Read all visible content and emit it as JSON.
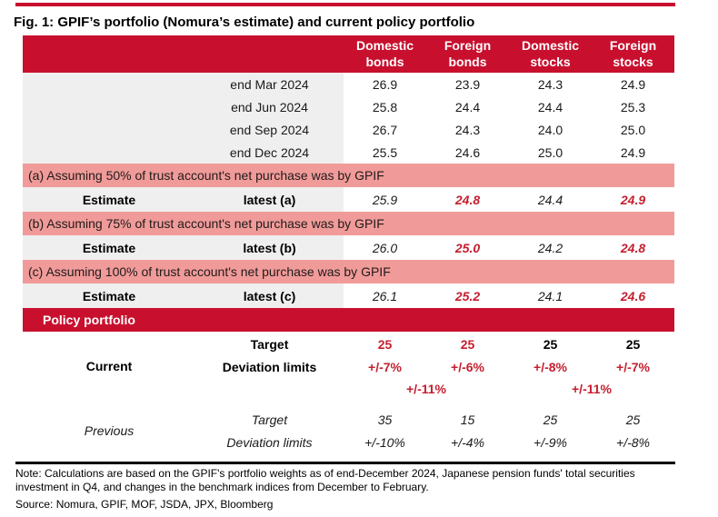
{
  "title": "Fig. 1: GPIF’s portfolio (Nomura’s estimate) and current policy portfolio",
  "colors": {
    "accent_red": "#c8102e",
    "band_pink": "#f09b99",
    "row_gray": "#efefef",
    "value_red": "#c41f30"
  },
  "header": {
    "cols": [
      "Domestic bonds",
      "Foreign bonds",
      "Domestic stocks",
      "Foreign stocks"
    ]
  },
  "history": [
    {
      "label": "end Mar 2024",
      "v": [
        "26.9",
        "23.9",
        "24.3",
        "24.9"
      ]
    },
    {
      "label": "end Jun 2024",
      "v": [
        "25.8",
        "24.4",
        "24.4",
        "25.3"
      ]
    },
    {
      "label": "end Sep 2024",
      "v": [
        "26.7",
        "24.3",
        "24.0",
        "25.0"
      ]
    },
    {
      "label": "end Dec 2024",
      "v": [
        "25.5",
        "24.6",
        "25.0",
        "24.9"
      ]
    }
  ],
  "scenarios": [
    {
      "band": "(a) Assuming 50% of trust account's net purchase was by GPIF",
      "label": "Estimate",
      "sub": "latest (a)",
      "v": [
        "25.9",
        "24.8",
        "24.4",
        "24.9"
      ]
    },
    {
      "band": "(b) Assuming 75% of trust account's net purchase was by GPIF",
      "label": "Estimate",
      "sub": "latest (b)",
      "v": [
        "26.0",
        "25.0",
        "24.2",
        "24.8"
      ]
    },
    {
      "band": "(c) Assuming 100% of trust account's net purchase was by GPIF",
      "label": "Estimate",
      "sub": "latest (c)",
      "v": [
        "26.1",
        "25.2",
        "24.1",
        "24.6"
      ]
    }
  ],
  "policy": {
    "band": "Policy portfolio",
    "current": {
      "label": "Current",
      "target_label": "Target",
      "target": [
        "25",
        "25",
        "25",
        "25"
      ],
      "dev_label": "Deviation limits",
      "dev": [
        "+/-7%",
        "+/-6%",
        "+/-8%",
        "+/-7%"
      ],
      "combined": [
        "+/-11%",
        "+/-11%"
      ]
    },
    "previous": {
      "label": "Previous",
      "target_label": "Target",
      "target": [
        "35",
        "15",
        "25",
        "25"
      ],
      "dev_label": "Deviation limits",
      "dev": [
        "+/-10%",
        "+/-4%",
        "+/-9%",
        "+/-8%"
      ]
    }
  },
  "note": "Note: Calculations are based on the GPIF's portfolio weights as of end-December 2024, Japanese pension funds' total securities investment in Q4, and changes in the benchmark indices from December to February.",
  "source": "Source: Nomura, GPIF, MOF, JSDA, JPX, Bloomberg"
}
